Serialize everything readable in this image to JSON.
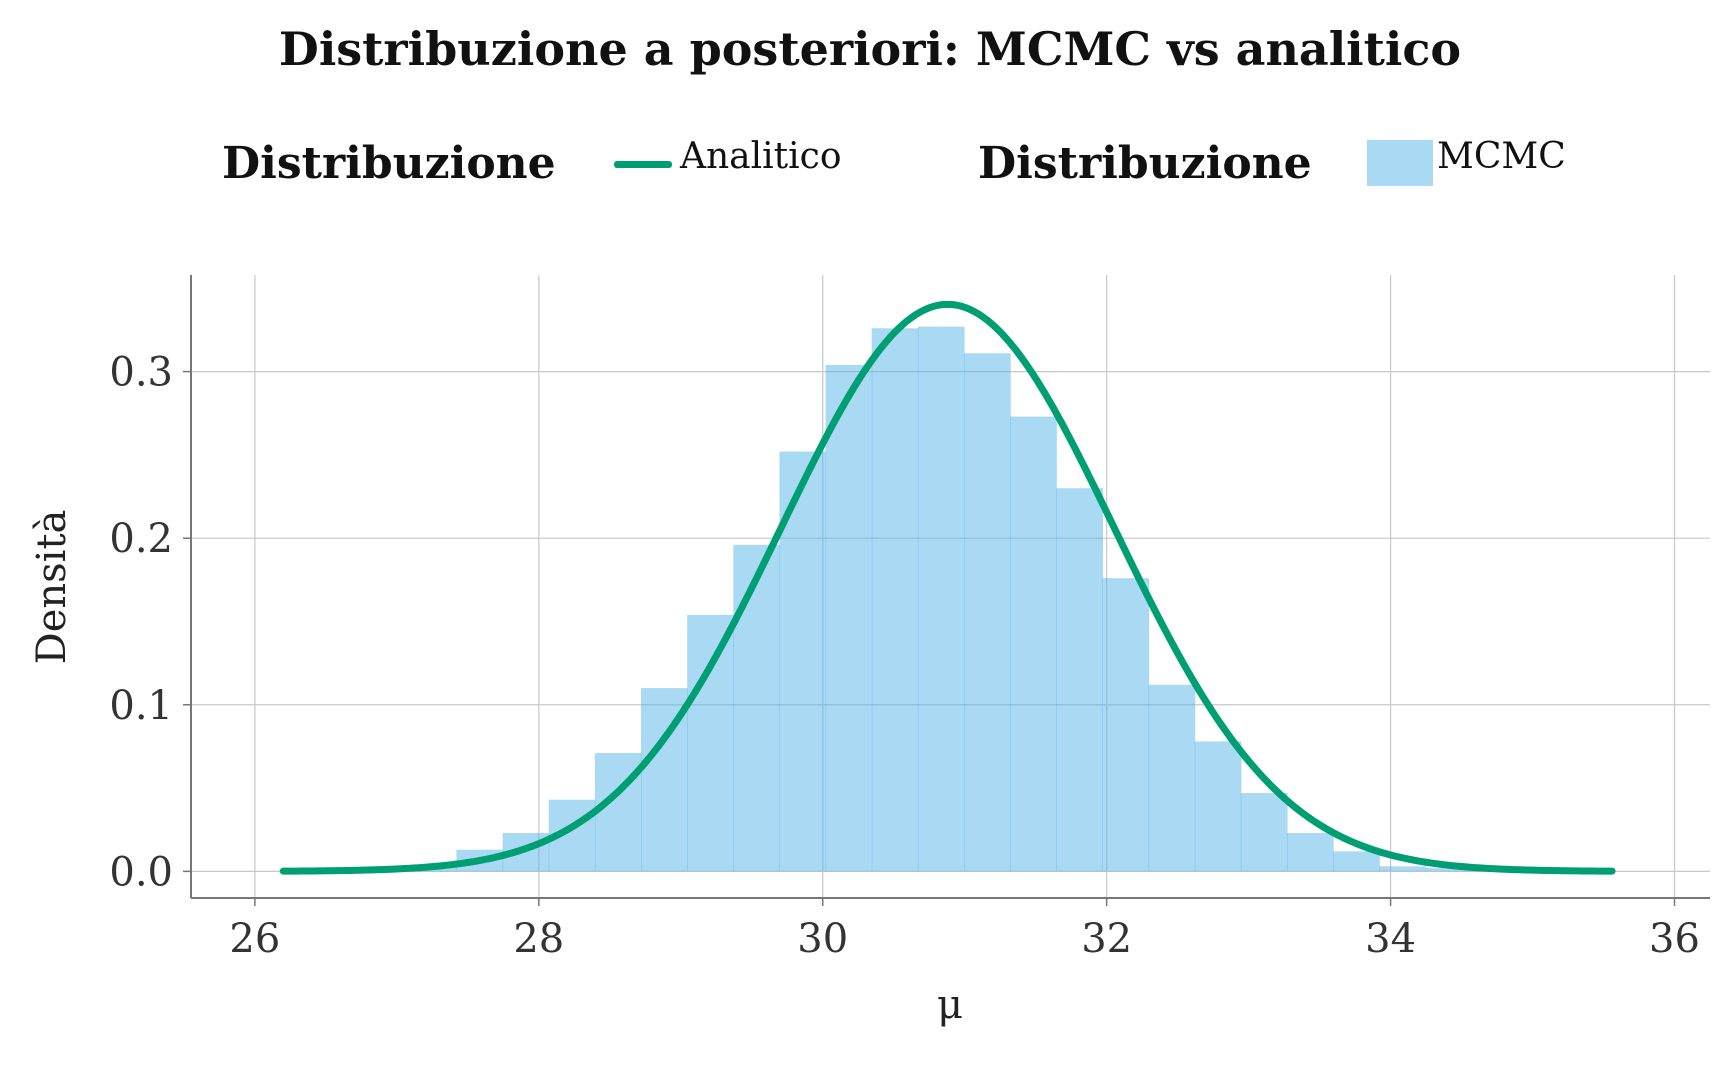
{
  "chart_data": {
    "type": "bar",
    "title": "Distribuzione a posteriori: MCMC vs analitico",
    "xlabel": "μ",
    "ylabel": "Densità",
    "xlim": [
      25.55,
      36.25
    ],
    "ylim": [
      -0.016,
      0.358
    ],
    "xticks": [
      26,
      28,
      30,
      32,
      34,
      36
    ],
    "xtick_labels": [
      "26",
      "28",
      "30",
      "32",
      "34",
      "36"
    ],
    "yticks": [
      0.0,
      0.1,
      0.2,
      0.3
    ],
    "ytick_labels": [
      "0.0",
      "0.1",
      "0.2",
      "0.3"
    ],
    "grid": true,
    "legend_position": "top",
    "legend": [
      {
        "title": "Distribuzione",
        "label": "Analitico",
        "kind": "line"
      },
      {
        "title": "Distribuzione",
        "label": "MCMC",
        "kind": "fill"
      }
    ],
    "histogram": {
      "name": "MCMC",
      "bin_width": 0.325,
      "bin_edges": [
        26.77,
        27.095,
        27.42,
        27.745,
        28.07,
        28.395,
        28.72,
        29.045,
        29.37,
        29.695,
        30.02,
        30.345,
        30.67,
        30.995,
        31.32,
        31.645,
        31.97,
        32.295,
        32.62,
        32.945,
        33.27,
        33.595,
        33.92,
        34.245,
        34.57,
        34.895
      ],
      "density": [
        0.001,
        0.003,
        0.013,
        0.023,
        0.043,
        0.071,
        0.11,
        0.154,
        0.196,
        0.252,
        0.304,
        0.326,
        0.327,
        0.311,
        0.273,
        0.23,
        0.176,
        0.112,
        0.078,
        0.047,
        0.023,
        0.012,
        0.003,
        0.002,
        0.001
      ]
    },
    "curve": {
      "name": "Analitico",
      "distribution": "normal",
      "mean": 30.88,
      "sd": 1.172,
      "x_range": [
        26.2,
        35.56
      ]
    }
  },
  "colors": {
    "curve": "#009e73",
    "hist": "#56b4e9",
    "grid": "#c8c8c8",
    "axis": "#777777",
    "text": "#333333"
  }
}
